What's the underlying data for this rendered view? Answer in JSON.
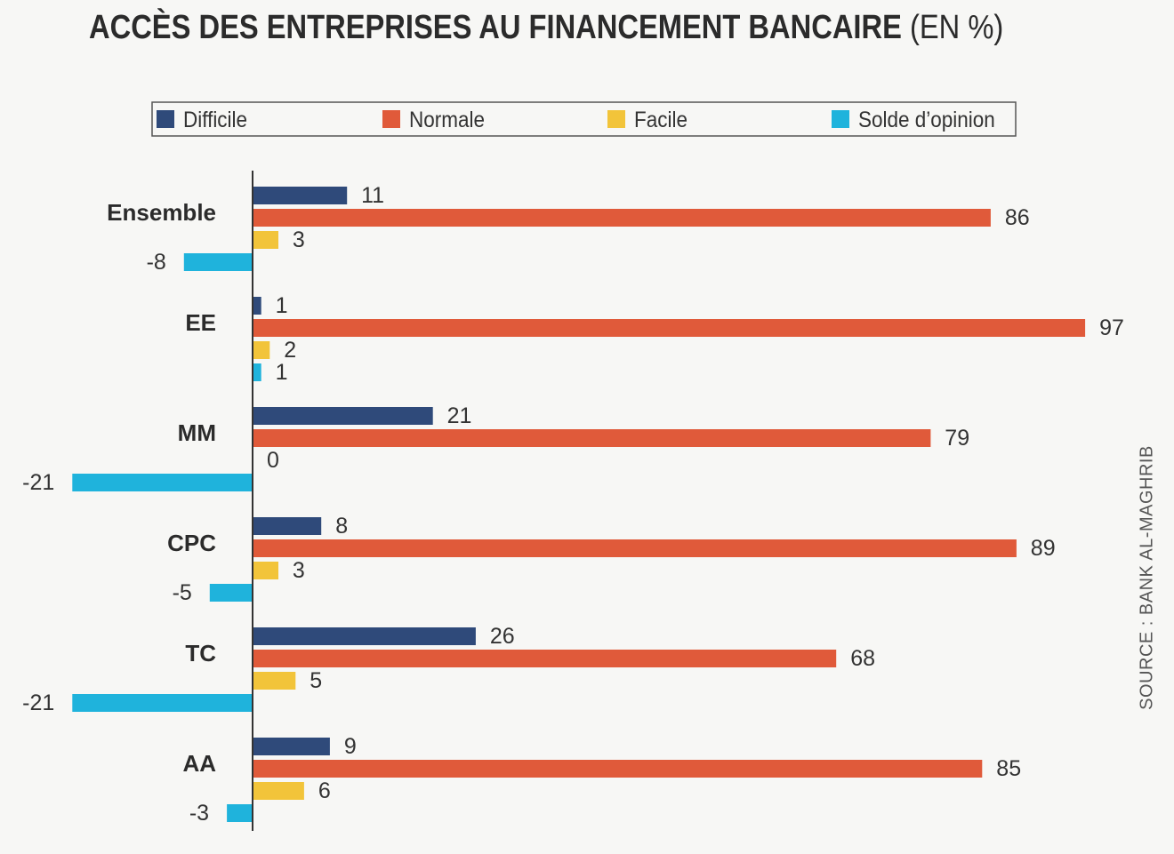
{
  "title": "ACCÈS DES ENTREPRISES AU FINANCEMENT BANCAIRE",
  "title_unit": "(EN %)",
  "source": "SOURCE : BANK AL-MAGHRIB",
  "chart_data": {
    "type": "bar",
    "orientation": "horizontal",
    "title": "ACCÈS DES ENTREPRISES AU FINANCEMENT BANCAIRE (EN %)",
    "categories": [
      "Ensemble",
      "EE",
      "MM",
      "CPC",
      "TC",
      "AA"
    ],
    "series": [
      {
        "name": "Difficile",
        "color": "#2f4a7a",
        "values": [
          11,
          1,
          21,
          8,
          26,
          9
        ]
      },
      {
        "name": "Normale",
        "color": "#e05a3a",
        "values": [
          86,
          97,
          79,
          89,
          68,
          85
        ]
      },
      {
        "name": "Facile",
        "color": "#f2c43a",
        "values": [
          3,
          2,
          0,
          3,
          5,
          6
        ]
      },
      {
        "name": "Solde d’opinion",
        "color": "#1fb3dc",
        "values": [
          -8,
          1,
          -21,
          -5,
          -21,
          -3
        ]
      }
    ],
    "legend_position": "top",
    "grid": false,
    "xlim": [
      -21,
      97
    ]
  }
}
